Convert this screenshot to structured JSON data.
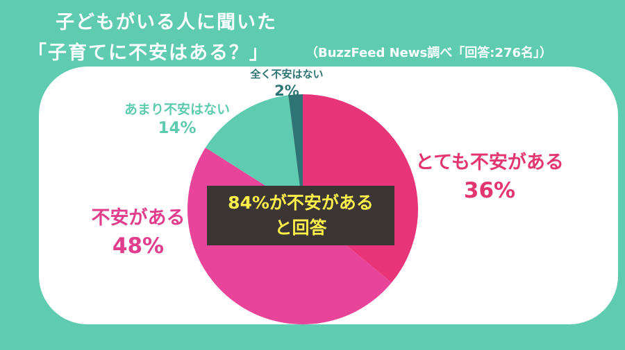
{
  "title": {
    "line1": "子どもがいる人に聞いた",
    "line2": "「子育てに不安はある？」"
  },
  "source": "（BuzzFeed News調べ「回答:276名」）",
  "callout": {
    "line1": "84%が不安がある",
    "line2": "と回答"
  },
  "colors": {
    "background": "#5fcbb0",
    "panel": "#ffffff",
    "callout_bg": "#3b3534",
    "callout_text": "#ffef4a"
  },
  "chart_data": {
    "type": "pie",
    "start": "12 o'clock, clockwise",
    "slices": [
      {
        "label": "とても不安がある",
        "value": 36,
        "value_label": "36%",
        "color": "#e8357a"
      },
      {
        "label": "不安がある",
        "value": 48,
        "value_label": "48%",
        "color": "#e8449a"
      },
      {
        "label": "あまり不安はない",
        "value": 14,
        "value_label": "14%",
        "color": "#5fcbb0"
      },
      {
        "label": "全く不安はない",
        "value": 2,
        "value_label": "2%",
        "color": "#2e7474"
      }
    ]
  }
}
